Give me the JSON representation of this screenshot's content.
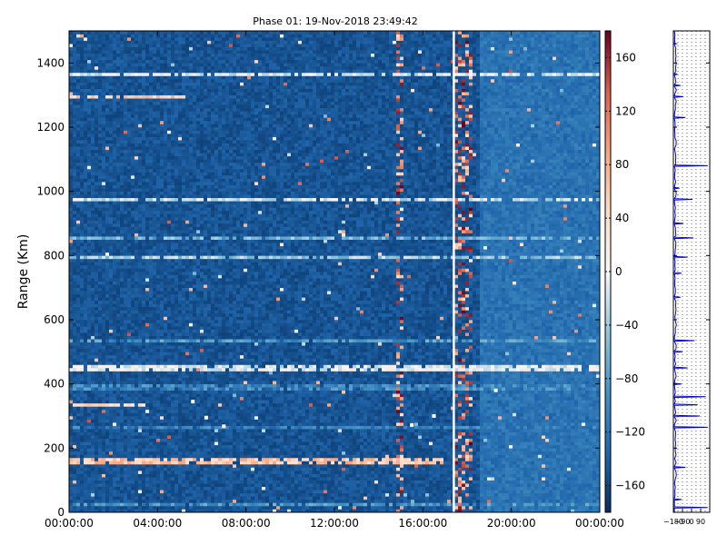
{
  "chart_data": [
    {
      "type": "heatmap",
      "title": "Phase 01: 19-Nov-2018 23:49:42",
      "xlabel": "",
      "ylabel": "Range (Km)",
      "xlim_hours": [
        0,
        24
      ],
      "ylim": [
        0,
        1500
      ],
      "x_ticks": [
        "00:00:00",
        "04:00:00",
        "08:00:00",
        "12:00:00",
        "16:00:00",
        "20:00:00",
        "00:00:00"
      ],
      "y_ticks": [
        "0",
        "200",
        "400",
        "600",
        "800",
        "1000",
        "1200",
        "1400"
      ],
      "colorbar": {
        "range": [
          -180,
          180
        ],
        "ticks": [
          "160",
          "120",
          "80",
          "40",
          "0",
          "−40",
          "−80",
          "−120",
          "−160"
        ],
        "colormap": "RdBu_r"
      },
      "base_value": -150,
      "bright_band_hours": [
        18.5,
        24
      ],
      "white_gap_hours": [
        17.35,
        17.45
      ],
      "red_noise_columns_hours": [
        14.95,
        17.6,
        17.8,
        18.0,
        18.2
      ],
      "bright_rows_km": [
        {
          "range_km": 1365,
          "from_h": 0,
          "to_h": 24,
          "value": -10
        },
        {
          "range_km": 1295,
          "from_h": 0,
          "to_h": 5.2,
          "value": 60
        },
        {
          "range_km": 975,
          "from_h": 0,
          "to_h": 24,
          "value": -20
        },
        {
          "range_km": 855,
          "from_h": 0,
          "to_h": 24,
          "value": -60
        },
        {
          "range_km": 795,
          "from_h": 0,
          "to_h": 24,
          "value": -40
        },
        {
          "range_km": 535,
          "from_h": 0,
          "to_h": 24,
          "value": -90
        },
        {
          "range_km": 450,
          "from_h": 0,
          "to_h": 24,
          "value": -5
        },
        {
          "range_km": 390,
          "from_h": 0,
          "to_h": 24,
          "value": -100
        },
        {
          "range_km": 335,
          "from_h": 0,
          "to_h": 3.5,
          "value": 40
        },
        {
          "range_km": 265,
          "from_h": 0,
          "to_h": 24,
          "value": -110
        },
        {
          "range_km": 160,
          "from_h": 0,
          "to_h": 17,
          "value": 60
        },
        {
          "range_km": 25,
          "from_h": 0,
          "to_h": 24,
          "value": -90
        }
      ],
      "trace_points": [
        {
          "x_h": 5.6,
          "range_km": 345
        },
        {
          "x_h": 6.2,
          "range_km": 295
        },
        {
          "x_h": 7.0,
          "range_km": 268
        },
        {
          "x_h": 15.5,
          "range_km": 272
        },
        {
          "x_h": 16.5,
          "range_km": 300
        },
        {
          "x_h": 19.3,
          "range_km": 380
        }
      ]
    },
    {
      "type": "line",
      "xlim": [
        -180,
        180
      ],
      "x_ticks": [
        "−180",
        "−90",
        "0",
        "90"
      ],
      "ylim": [
        0,
        1500
      ],
      "color": "#0000cc",
      "grid": true,
      "baseline": -170,
      "spikes": [
        {
          "range_km": 1460,
          "value": -150
        },
        {
          "range_km": 1365,
          "value": -140
        },
        {
          "range_km": 1330,
          "value": -110
        },
        {
          "range_km": 1295,
          "value": -80
        },
        {
          "range_km": 1230,
          "value": -60
        },
        {
          "range_km": 1080,
          "value": 160
        },
        {
          "range_km": 1010,
          "value": -120
        },
        {
          "range_km": 975,
          "value": 10
        },
        {
          "range_km": 900,
          "value": -80
        },
        {
          "range_km": 855,
          "value": 20
        },
        {
          "range_km": 795,
          "value": -40
        },
        {
          "range_km": 745,
          "value": -100
        },
        {
          "range_km": 670,
          "value": -110
        },
        {
          "range_km": 535,
          "value": 30
        },
        {
          "range_km": 500,
          "value": -90
        },
        {
          "range_km": 450,
          "value": -40
        },
        {
          "range_km": 400,
          "value": -100
        },
        {
          "range_km": 360,
          "value": 140
        },
        {
          "range_km": 335,
          "value": 60
        },
        {
          "range_km": 300,
          "value": 80
        },
        {
          "range_km": 265,
          "value": 160
        },
        {
          "range_km": 140,
          "value": -60
        },
        {
          "range_km": 40,
          "value": -100
        },
        {
          "range_km": 15,
          "value": 160
        }
      ]
    }
  ]
}
